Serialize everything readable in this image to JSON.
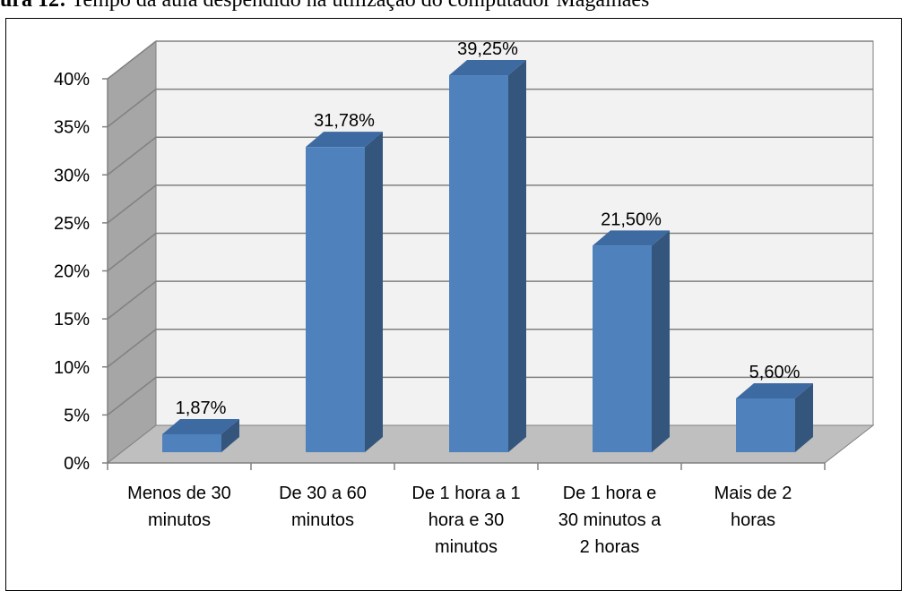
{
  "caption": {
    "label": "ura 12:",
    "text": " Tempo da aula despendido na utilização do computador Magalhães"
  },
  "colors": {
    "bar_front": "#4f81bd",
    "bar_side": "#34557c",
    "bar_top": "#3d6aa1",
    "wall": "#f2f2f2",
    "side_wall": "#a6a6a6",
    "floor": "#bfbfbf",
    "grid": "#808080"
  },
  "chart_data": {
    "type": "bar",
    "categories": [
      "Menos de 30 minutos",
      "De 30 a 60 minutos",
      "De 1 hora a 1 hora e 30 minutos",
      "De 1 hora e 30 minutos a 2 horas",
      "Mais de 2 horas"
    ],
    "category_lines": [
      [
        "Menos de 30",
        "minutos"
      ],
      [
        "De 30 a 60",
        "minutos"
      ],
      [
        "De 1 hora a 1",
        "hora e 30",
        "minutos"
      ],
      [
        "De 1 hora e",
        "30 minutos a",
        "2 horas"
      ],
      [
        "Mais de 2",
        "horas"
      ]
    ],
    "values": [
      1.87,
      31.78,
      39.25,
      21.5,
      5.6
    ],
    "data_labels": [
      "1,87%",
      "31,78%",
      "39,25%",
      "21,50%",
      "5,60%"
    ],
    "y_ticks": [
      "0%",
      "5%",
      "10%",
      "15%",
      "20%",
      "25%",
      "30%",
      "35%",
      "40%"
    ],
    "ylim": [
      0,
      40
    ],
    "grid": true,
    "three_d": true
  }
}
